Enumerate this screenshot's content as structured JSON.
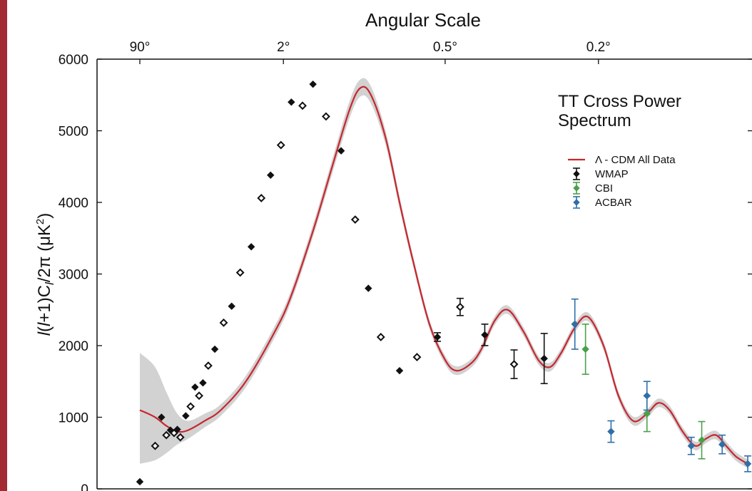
{
  "chart_data": {
    "type": "scatter",
    "top_axis_label": "Angular Scale",
    "top_ticks": [
      {
        "label": "90°",
        "x": 2
      },
      {
        "label": "2°",
        "x": 90
      },
      {
        "label": "0.5°",
        "x": 400
      },
      {
        "label": "0.2°",
        "x": 900
      }
    ],
    "ylabel": "l(l+1)Cl/2π (μK²)",
    "ylabel_parts": {
      "a": "l",
      "b": "(",
      "c": "l",
      "d": "+1)C",
      "e": "l",
      "f": "/2π (μK",
      "g": "2",
      "h": ")"
    },
    "ylim": [
      0,
      6000
    ],
    "yticks": [
      "0",
      "1000",
      "2000",
      "3000",
      "4000",
      "5000",
      "6000"
    ],
    "annotation": [
      "TT Cross Power",
      "Spectrum"
    ],
    "legend": [
      {
        "label": "Λ - CDM All Data",
        "color": "#c8262e",
        "kind": "line"
      },
      {
        "label": "WMAP",
        "color": "#111111",
        "kind": "point"
      },
      {
        "label": "CBI",
        "color": "#4aa04a",
        "kind": "point"
      },
      {
        "label": "ACBAR",
        "color": "#2f6fa8",
        "kind": "point"
      }
    ],
    "curve_x": [
      2,
      3,
      5,
      8,
      12,
      20,
      30,
      50,
      80,
      100,
      130,
      160,
      190,
      210,
      230,
      260,
      290,
      320,
      360,
      400,
      430,
      470,
      500,
      540,
      580,
      630,
      680,
      720,
      760,
      810,
      860,
      920,
      980,
      1040,
      1100,
      1150,
      1200,
      1260,
      1320,
      1370,
      1420,
      1470,
      1520,
      1580
    ],
    "curve_y": [
      1100,
      1000,
      880,
      800,
      820,
      950,
      1100,
      1500,
      2200,
      2700,
      3600,
      4500,
      5300,
      5600,
      5500,
      4900,
      4000,
      3200,
      2300,
      1800,
      1650,
      1750,
      1950,
      2350,
      2500,
      2200,
      1800,
      1700,
      1900,
      2250,
      2400,
      2000,
      1300,
      950,
      1050,
      1200,
      1100,
      800,
      600,
      700,
      750,
      600,
      450,
      350
    ],
    "band_upper": [
      1900,
      1700,
      1350,
      1050,
      950,
      1050,
      1180,
      1580,
      2280,
      2780,
      3690,
      4600,
      5420,
      5720,
      5620,
      5000,
      4080,
      3270,
      2360,
      1860,
      1710,
      1810,
      2010,
      2410,
      2560,
      2260,
      1860,
      1760,
      1960,
      2310,
      2460,
      2060,
      1360,
      1010,
      1110,
      1260,
      1160,
      860,
      660,
      760,
      810,
      660,
      510,
      410
    ],
    "band_lower": [
      350,
      400,
      500,
      620,
      700,
      860,
      1020,
      1420,
      2120,
      2620,
      3520,
      4400,
      5180,
      5480,
      5380,
      4800,
      3920,
      3130,
      2240,
      1740,
      1590,
      1690,
      1890,
      2290,
      2440,
      2140,
      1740,
      1640,
      1840,
      2190,
      2340,
      1940,
      1240,
      890,
      990,
      1140,
      1040,
      740,
      540,
      640,
      690,
      540,
      390,
      290
    ],
    "series": [
      {
        "name": "WMAP",
        "color": "#111111",
        "points": [
          {
            "x": 2,
            "y": 100
          },
          {
            "x": 3,
            "y": 600
          },
          {
            "x": 4,
            "y": 1000
          },
          {
            "x": 5,
            "y": 750
          },
          {
            "x": 6,
            "y": 820
          },
          {
            "x": 7,
            "y": 780
          },
          {
            "x": 8,
            "y": 830
          },
          {
            "x": 9,
            "y": 720
          },
          {
            "x": 11,
            "y": 1020
          },
          {
            "x": 13,
            "y": 1150
          },
          {
            "x": 15,
            "y": 1420
          },
          {
            "x": 17,
            "y": 1300
          },
          {
            "x": 19,
            "y": 1480
          },
          {
            "x": 22,
            "y": 1720
          },
          {
            "x": 26,
            "y": 1950
          },
          {
            "x": 32,
            "y": 2320
          },
          {
            "x": 38,
            "y": 2550
          },
          {
            "x": 45,
            "y": 3020
          },
          {
            "x": 55,
            "y": 3380
          },
          {
            "x": 65,
            "y": 4060
          },
          {
            "x": 75,
            "y": 4380
          },
          {
            "x": 87,
            "y": 4800
          },
          {
            "x": 100,
            "y": 5400
          },
          {
            "x": 115,
            "y": 5350
          },
          {
            "x": 130,
            "y": 5650
          },
          {
            "x": 150,
            "y": 5200
          },
          {
            "x": 175,
            "y": 4720
          },
          {
            "x": 200,
            "y": 3760
          },
          {
            "x": 225,
            "y": 2800
          },
          {
            "x": 250,
            "y": 2120
          },
          {
            "x": 290,
            "y": 1650
          },
          {
            "x": 330,
            "y": 1840
          },
          {
            "x": 380,
            "y": 2120
          },
          {
            "x": 440,
            "y": 2540
          },
          {
            "x": 510,
            "y": 2150
          },
          {
            "x": 600,
            "y": 1740
          },
          {
            "x": 700,
            "y": 1820
          }
        ],
        "err": [
          0,
          0,
          0,
          0,
          0,
          0,
          0,
          0,
          0,
          0,
          0,
          0,
          0,
          0,
          0,
          0,
          0,
          0,
          0,
          0,
          0,
          0,
          0,
          0,
          0,
          0,
          0,
          0,
          0,
          0,
          0,
          0,
          60,
          120,
          150,
          200,
          350
        ]
      },
      {
        "name": "CBI",
        "color": "#4aa04a",
        "points": [
          {
            "x": 850,
            "y": 1950
          },
          {
            "x": 1100,
            "y": 1050
          },
          {
            "x": 1350,
            "y": 680
          }
        ],
        "err": [
          350,
          250,
          260
        ]
      },
      {
        "name": "ACBAR",
        "color": "#2f6fa8",
        "points": [
          {
            "x": 810,
            "y": 2300
          },
          {
            "x": 950,
            "y": 800
          },
          {
            "x": 1100,
            "y": 1300
          },
          {
            "x": 1300,
            "y": 600
          },
          {
            "x": 1450,
            "y": 620
          },
          {
            "x": 1580,
            "y": 350
          }
        ],
        "err": [
          350,
          150,
          200,
          120,
          130,
          110
        ]
      }
    ]
  }
}
